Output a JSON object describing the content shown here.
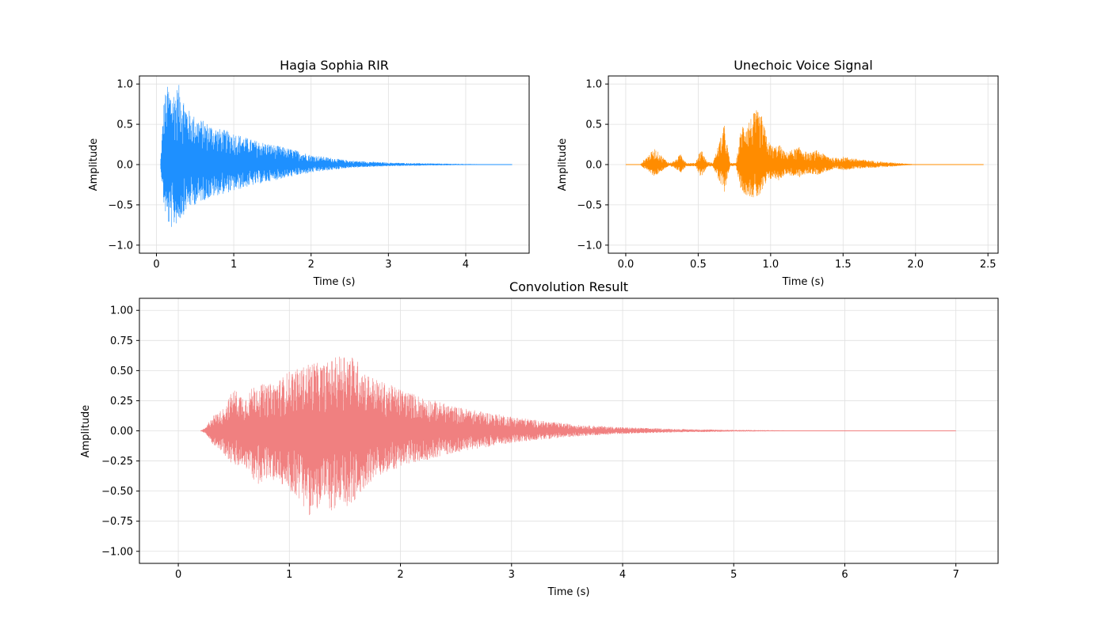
{
  "chart_data": [
    {
      "type": "line",
      "title": "Hagia Sophia RIR",
      "xlabel": "Time (s)",
      "ylabel": "Amplitude",
      "xlim": [
        -0.22,
        4.82
      ],
      "ylim": [
        -1.1,
        1.1
      ],
      "xticks": [
        0,
        1,
        2,
        3,
        4
      ],
      "xtick_labels": [
        "0",
        "1",
        "2",
        "3",
        "4"
      ],
      "yticks": [
        -1.0,
        -0.5,
        0.0,
        0.5,
        1.0
      ],
      "ytick_labels": [
        "−1.0",
        "−0.5",
        "0.0",
        "0.5",
        "1.0"
      ],
      "grid": true,
      "color": "#1e90ff",
      "series": [
        {
          "x": [
            0.05,
            0.1,
            0.15,
            0.2,
            0.3,
            0.4,
            0.5,
            0.6,
            0.8,
            1.0,
            1.2,
            1.5,
            1.8,
            2.0,
            2.5,
            3.0,
            3.5,
            4.0,
            4.6
          ],
          "upper": [
            0.0,
            0.85,
            1.0,
            0.9,
            1.0,
            0.7,
            0.6,
            0.55,
            0.45,
            0.4,
            0.32,
            0.25,
            0.18,
            0.12,
            0.05,
            0.025,
            0.015,
            0.008,
            0.0
          ],
          "lower": [
            0.0,
            -0.55,
            -0.75,
            -0.8,
            -0.7,
            -0.55,
            -0.5,
            -0.45,
            -0.38,
            -0.33,
            -0.27,
            -0.2,
            -0.14,
            -0.1,
            -0.04,
            -0.02,
            -0.012,
            -0.006,
            0.0
          ]
        }
      ]
    },
    {
      "type": "line",
      "title": "Unechoic Voice Signal",
      "xlabel": "Time (s)",
      "ylabel": "Amplitude",
      "xlim": [
        -0.12,
        2.57
      ],
      "ylim": [
        -1.1,
        1.1
      ],
      "xticks": [
        0.0,
        0.5,
        1.0,
        1.5,
        2.0,
        2.5
      ],
      "xtick_labels": [
        "0.0",
        "0.5",
        "1.0",
        "1.5",
        "2.0",
        "2.5"
      ],
      "yticks": [
        -1.0,
        -0.5,
        0.0,
        0.5,
        1.0
      ],
      "ytick_labels": [
        "−1.0",
        "−0.5",
        "0.0",
        "0.5",
        "1.0"
      ],
      "grid": true,
      "color": "#ff8c00",
      "series": [
        {
          "x": [
            0.0,
            0.1,
            0.12,
            0.2,
            0.28,
            0.3,
            0.34,
            0.38,
            0.42,
            0.48,
            0.52,
            0.56,
            0.6,
            0.64,
            0.68,
            0.72,
            0.76,
            0.8,
            0.86,
            0.9,
            0.94,
            0.98,
            1.02,
            1.06,
            1.1,
            1.14,
            1.2,
            1.26,
            1.32,
            1.38,
            1.44,
            1.5,
            1.6,
            1.7,
            1.8,
            1.9,
            2.02,
            2.47
          ],
          "upper": [
            0.0,
            0.0,
            0.05,
            0.2,
            0.05,
            0.02,
            0.05,
            0.14,
            0.02,
            0.02,
            0.2,
            0.04,
            0.02,
            0.25,
            0.5,
            0.02,
            0.02,
            0.5,
            0.58,
            0.68,
            0.6,
            0.3,
            0.22,
            0.25,
            0.15,
            0.18,
            0.22,
            0.14,
            0.18,
            0.12,
            0.08,
            0.1,
            0.07,
            0.05,
            0.03,
            0.02,
            0.0,
            0.0
          ],
          "lower": [
            0.0,
            0.0,
            -0.04,
            -0.15,
            -0.04,
            -0.02,
            -0.05,
            -0.1,
            -0.02,
            -0.02,
            -0.16,
            -0.03,
            -0.02,
            -0.2,
            -0.35,
            -0.02,
            -0.02,
            -0.35,
            -0.4,
            -0.43,
            -0.36,
            -0.2,
            -0.17,
            -0.2,
            -0.12,
            -0.14,
            -0.16,
            -0.11,
            -0.13,
            -0.09,
            -0.06,
            -0.07,
            -0.05,
            -0.04,
            -0.03,
            -0.015,
            0.0,
            0.0
          ]
        }
      ]
    },
    {
      "type": "line",
      "title": "Convolution Result",
      "xlabel": "Time (s)",
      "ylabel": "Amplitude",
      "xlim": [
        -0.35,
        7.38
      ],
      "ylim": [
        -1.1,
        1.1
      ],
      "xticks": [
        0,
        1,
        2,
        3,
        4,
        5,
        6,
        7
      ],
      "xtick_labels": [
        "0",
        "1",
        "2",
        "3",
        "4",
        "5",
        "6",
        "7"
      ],
      "yticks": [
        -1.0,
        -0.75,
        -0.5,
        -0.25,
        0.0,
        0.25,
        0.5,
        0.75,
        1.0
      ],
      "ytick_labels": [
        "−1.00",
        "−0.75",
        "−0.50",
        "−0.25",
        "0.00",
        "0.25",
        "0.50",
        "0.75",
        "1.00"
      ],
      "grid": true,
      "color": "#f08080",
      "series": [
        {
          "x": [
            0.2,
            0.25,
            0.3,
            0.4,
            0.5,
            0.6,
            0.7,
            0.8,
            0.9,
            1.0,
            1.1,
            1.2,
            1.3,
            1.4,
            1.5,
            1.6,
            1.7,
            1.8,
            2.0,
            2.2,
            2.5,
            2.8,
            3.0,
            3.3,
            3.6,
            4.0,
            4.5,
            5.0,
            5.5,
            6.0,
            6.5,
            7.0
          ],
          "upper": [
            0.0,
            0.03,
            0.12,
            0.18,
            0.35,
            0.28,
            0.4,
            0.38,
            0.42,
            0.5,
            0.52,
            0.58,
            0.55,
            0.6,
            0.66,
            0.6,
            0.48,
            0.42,
            0.35,
            0.28,
            0.2,
            0.15,
            0.12,
            0.08,
            0.05,
            0.03,
            0.015,
            0.008,
            0.004,
            0.002,
            0.001,
            0.0
          ],
          "lower": [
            0.0,
            -0.03,
            -0.1,
            -0.18,
            -0.3,
            -0.3,
            -0.45,
            -0.4,
            -0.43,
            -0.5,
            -0.58,
            -0.73,
            -0.6,
            -0.68,
            -0.65,
            -0.6,
            -0.45,
            -0.38,
            -0.3,
            -0.25,
            -0.18,
            -0.13,
            -0.1,
            -0.07,
            -0.045,
            -0.025,
            -0.012,
            -0.006,
            -0.003,
            -0.0015,
            -0.0008,
            0.0
          ]
        }
      ]
    }
  ]
}
